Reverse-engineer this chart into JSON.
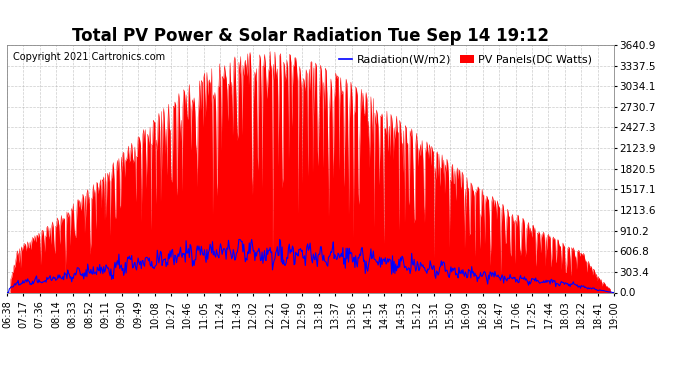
{
  "title": "Total PV Power & Solar Radiation Tue Sep 14 19:12",
  "copyright": "Copyright 2021 Cartronics.com",
  "legend_radiation": "Radiation(W/m2)",
  "legend_pv": "PV Panels(DC Watts)",
  "radiation_color": "blue",
  "pv_color": "red",
  "background_color": "#ffffff",
  "grid_color": "#aaaaaa",
  "yticks": [
    0.0,
    303.4,
    606.8,
    910.2,
    1213.6,
    1517.1,
    1820.5,
    2123.9,
    2427.3,
    2730.7,
    3034.1,
    3337.5,
    3640.9
  ],
  "ylim": [
    0.0,
    3640.9
  ],
  "xtick_labels": [
    "06:38",
    "07:17",
    "07:36",
    "08:14",
    "08:33",
    "08:52",
    "09:11",
    "09:30",
    "09:49",
    "10:08",
    "10:27",
    "10:46",
    "11:05",
    "11:24",
    "11:43",
    "12:02",
    "12:21",
    "12:40",
    "12:59",
    "13:18",
    "13:37",
    "13:56",
    "14:15",
    "14:34",
    "14:53",
    "15:12",
    "15:31",
    "15:50",
    "16:09",
    "16:28",
    "16:47",
    "17:06",
    "17:25",
    "17:44",
    "18:03",
    "18:22",
    "18:41",
    "19:00"
  ],
  "n_xticks": 38,
  "n_dense": 760,
  "title_fontsize": 12,
  "copyright_fontsize": 7,
  "legend_fontsize": 8,
  "tick_fontsize": 7,
  "ytick_fontsize": 7.5
}
